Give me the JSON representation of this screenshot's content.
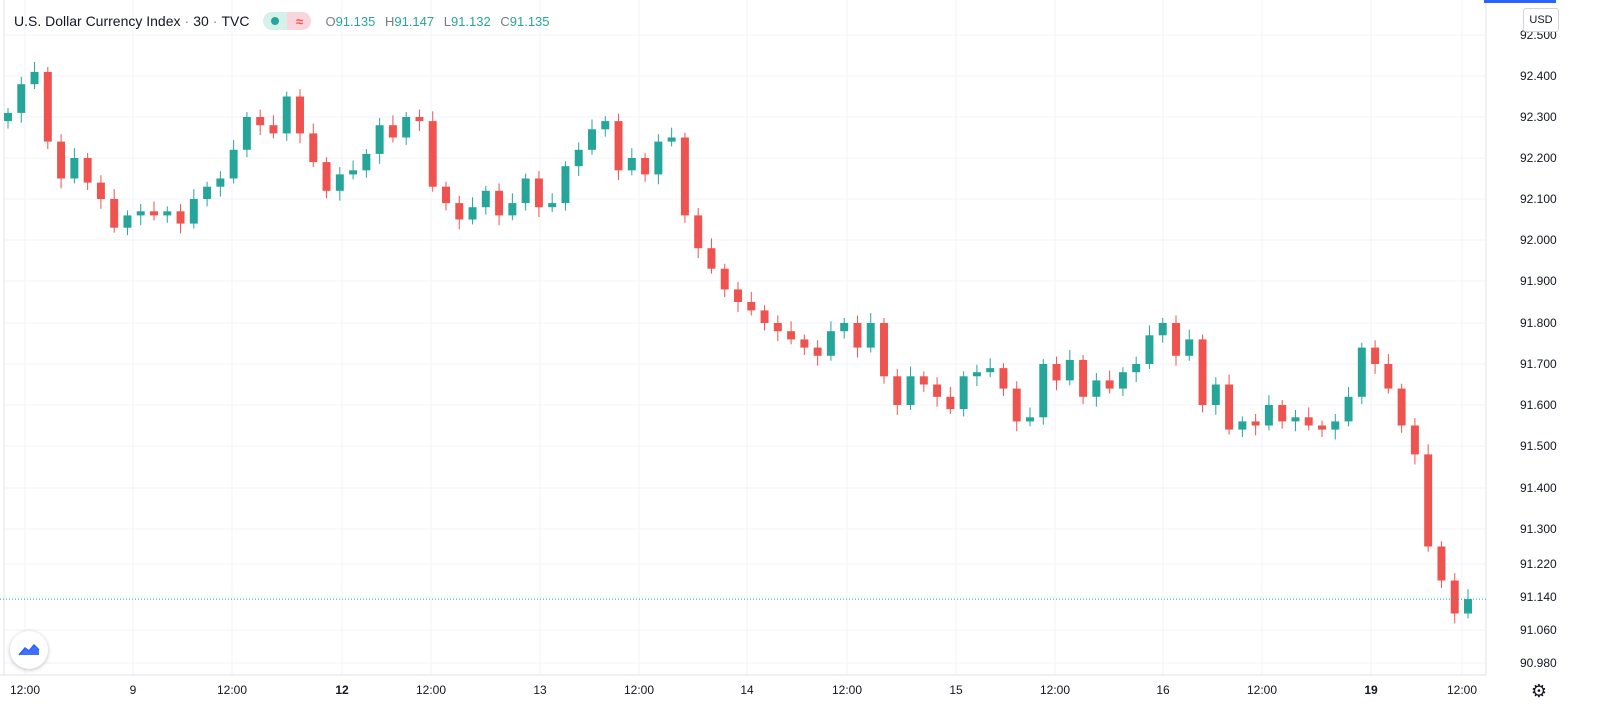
{
  "header": {
    "symbol": "U.S. Dollar Currency Index",
    "interval": "30",
    "exchange": "TVC",
    "separator": "·",
    "approx_glyph": "≈",
    "ohlc": {
      "o_label": "O",
      "o_value": "91.135",
      "h_label": "H",
      "h_value": "91.147",
      "l_label": "L",
      "l_value": "91.132",
      "c_label": "C",
      "c_value": "91.135"
    }
  },
  "currency_button": "USD",
  "settings_icon": "gear-icon",
  "logo_icon": "tradingview-logo-icon",
  "colors": {
    "up": "#26a69a",
    "down": "#ef5350",
    "grid": "#f0f3fa",
    "axis_text": "#131722",
    "last_price_line": "#26a69a"
  },
  "chart_data": {
    "type": "candlestick",
    "y_ticks": [
      "92.500",
      "92.400",
      "92.300",
      "92.200",
      "92.100",
      "92.000",
      "91.900",
      "91.800",
      "91.700",
      "91.600",
      "91.500",
      "91.400",
      "91.300",
      "91.220",
      "91.140",
      "91.060",
      "90.980"
    ],
    "x_ticks": [
      "12:00",
      "9",
      "12:00",
      "12",
      "12:00",
      "13",
      "12:00",
      "14",
      "12:00",
      "15",
      "12:00",
      "16",
      "12:00",
      "19",
      "12:00"
    ],
    "bold_x_ticks": [
      "12",
      "19"
    ],
    "last_price": 91.135,
    "grid": true,
    "price_series": [
      [
        0,
        92.31
      ],
      [
        1,
        92.38
      ],
      [
        2,
        92.41
      ],
      [
        3,
        92.24
      ],
      [
        4,
        92.15
      ],
      [
        5,
        92.2
      ],
      [
        6,
        92.14
      ],
      [
        7,
        92.1
      ],
      [
        8,
        92.03
      ],
      [
        9,
        92.06
      ],
      [
        10,
        92.07
      ],
      [
        11,
        92.06
      ],
      [
        12,
        92.07
      ],
      [
        13,
        92.04
      ],
      [
        14,
        92.1
      ],
      [
        15,
        92.13
      ],
      [
        16,
        92.15
      ],
      [
        17,
        92.22
      ],
      [
        18,
        92.3
      ],
      [
        19,
        92.28
      ],
      [
        20,
        92.26
      ],
      [
        21,
        92.35
      ],
      [
        22,
        92.26
      ],
      [
        23,
        92.19
      ],
      [
        24,
        92.12
      ],
      [
        25,
        92.16
      ],
      [
        26,
        92.17
      ],
      [
        27,
        92.21
      ],
      [
        28,
        92.28
      ],
      [
        29,
        92.25
      ],
      [
        30,
        92.3
      ],
      [
        31,
        92.29
      ],
      [
        32,
        92.13
      ],
      [
        33,
        92.09
      ],
      [
        34,
        92.05
      ],
      [
        35,
        92.08
      ],
      [
        36,
        92.12
      ],
      [
        37,
        92.06
      ],
      [
        38,
        92.09
      ],
      [
        39,
        92.15
      ],
      [
        40,
        92.08
      ],
      [
        41,
        92.09
      ],
      [
        42,
        92.18
      ],
      [
        43,
        92.22
      ],
      [
        44,
        92.27
      ],
      [
        45,
        92.29
      ],
      [
        46,
        92.17
      ],
      [
        47,
        92.2
      ],
      [
        48,
        92.16
      ],
      [
        49,
        92.24
      ],
      [
        50,
        92.25
      ],
      [
        51,
        92.06
      ],
      [
        52,
        91.98
      ],
      [
        53,
        91.93
      ],
      [
        54,
        91.88
      ],
      [
        55,
        91.85
      ],
      [
        56,
        91.83
      ],
      [
        57,
        91.8
      ],
      [
        58,
        91.78
      ],
      [
        59,
        91.76
      ],
      [
        60,
        91.74
      ],
      [
        61,
        91.72
      ],
      [
        62,
        91.78
      ],
      [
        63,
        91.8
      ],
      [
        64,
        91.74
      ],
      [
        65,
        91.8
      ],
      [
        66,
        91.67
      ],
      [
        67,
        91.6
      ],
      [
        68,
        91.67
      ],
      [
        69,
        91.65
      ],
      [
        70,
        91.62
      ],
      [
        71,
        91.59
      ],
      [
        72,
        91.67
      ],
      [
        73,
        91.68
      ],
      [
        74,
        91.69
      ],
      [
        75,
        91.64
      ],
      [
        76,
        91.56
      ],
      [
        77,
        91.57
      ],
      [
        78,
        91.7
      ],
      [
        79,
        91.66
      ],
      [
        80,
        91.71
      ],
      [
        81,
        91.62
      ],
      [
        82,
        91.66
      ],
      [
        83,
        91.64
      ],
      [
        84,
        91.68
      ],
      [
        85,
        91.7
      ],
      [
        86,
        91.77
      ],
      [
        87,
        91.8
      ],
      [
        88,
        91.72
      ],
      [
        89,
        91.76
      ],
      [
        90,
        91.6
      ],
      [
        91,
        91.65
      ],
      [
        92,
        91.54
      ],
      [
        93,
        91.56
      ],
      [
        94,
        91.55
      ],
      [
        95,
        91.6
      ],
      [
        96,
        91.56
      ],
      [
        97,
        91.57
      ],
      [
        98,
        91.55
      ],
      [
        99,
        91.54
      ],
      [
        100,
        91.56
      ],
      [
        101,
        91.62
      ],
      [
        102,
        91.74
      ],
      [
        103,
        91.7
      ],
      [
        104,
        91.64
      ],
      [
        105,
        91.55
      ],
      [
        106,
        91.48
      ],
      [
        107,
        91.26
      ],
      [
        108,
        91.18
      ],
      [
        109,
        91.1
      ],
      [
        110,
        91.135
      ]
    ]
  }
}
